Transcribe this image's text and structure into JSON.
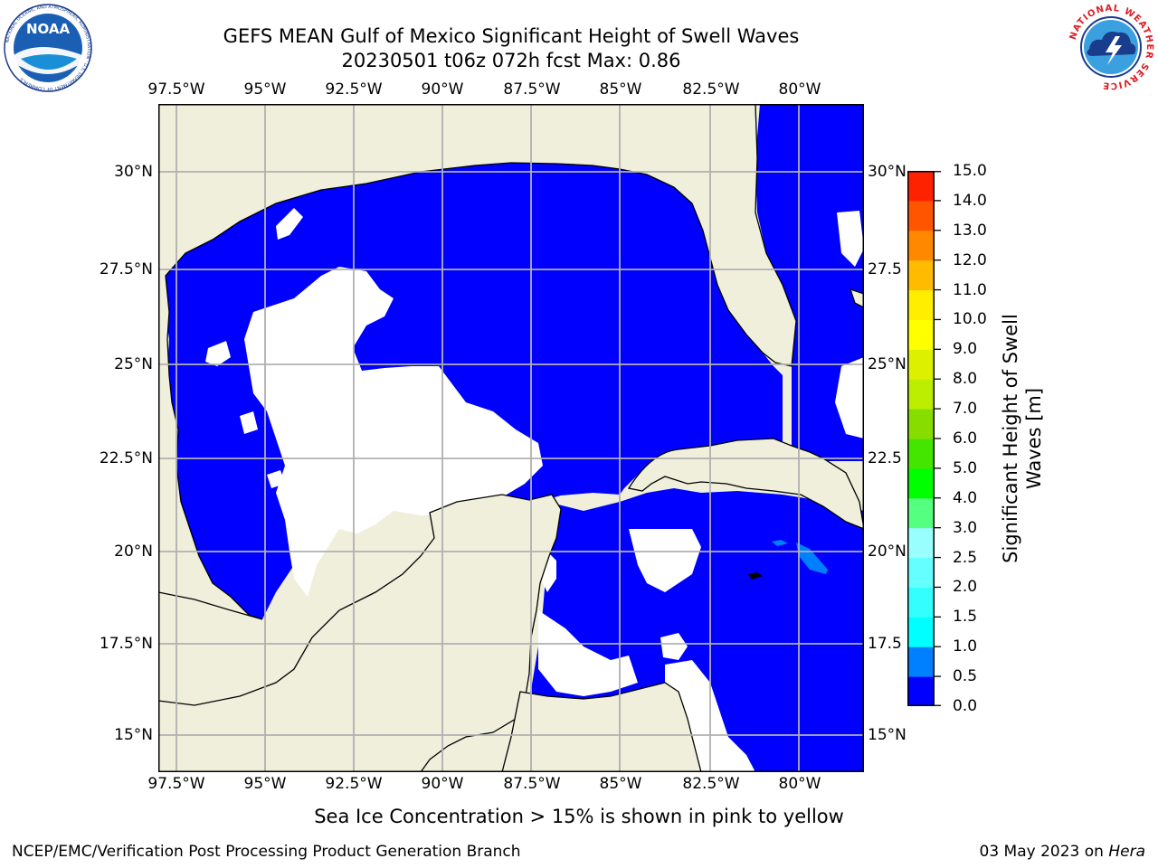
{
  "header": {
    "title": "GEFS MEAN Gulf of Mexico Significant Height of Swell Waves",
    "subtitle": "20230501 t06z 072h fcst   Max: 0.86"
  },
  "logos": {
    "left": "noaa-logo",
    "right": "national-weather-service-logo",
    "left_ring_text": "NATIONAL OCEANIC AND ATMOSPHERIC ADMINISTRATION · U.S. DEPARTMENT OF COMMERCE",
    "left_center_text": "NOAA",
    "right_ring_text": "NATIONAL WEATHER SERVICE"
  },
  "map": {
    "lon_labels": [
      "97.5°W",
      "95°W",
      "92.5°W",
      "90°W",
      "87.5°W",
      "85°W",
      "82.5°W",
      "80°W"
    ],
    "lat_labels_left": [
      "30°N",
      "27.5°N",
      "25°N",
      "22.5°N",
      "20°N",
      "17.5°N",
      "15°N"
    ],
    "lat_labels_right": [
      "30°N",
      "27.5",
      "25°N",
      "22.5",
      "20°N",
      "17.5",
      "15°N"
    ],
    "colors": {
      "land": "#efefdc",
      "no_data": "#ffffff",
      "level_0": "#0000ff",
      "level_0_5": "#0080ff",
      "gridline": "#b0b0b0"
    }
  },
  "colorbar": {
    "label": "Significant Height of Swell Waves [m]",
    "ticks": [
      "0.0",
      "0.5",
      "1.0",
      "1.5",
      "2.0",
      "2.5",
      "3.0",
      "4.0",
      "5.0",
      "6.0",
      "7.0",
      "8.0",
      "9.0",
      "10.0",
      "11.0",
      "12.0",
      "13.0",
      "14.0",
      "15.0"
    ],
    "colors": [
      "#0000ff",
      "#0080ff",
      "#00ffff",
      "#33ffff",
      "#66ffff",
      "#99ffff",
      "#55ff80",
      "#00ff00",
      "#44e600",
      "#88dd00",
      "#bbee00",
      "#ddf000",
      "#ffff00",
      "#ffee00",
      "#ffbb00",
      "#ff8800",
      "#ff5500",
      "#ff2200"
    ]
  },
  "notes": {
    "ice": "Sea Ice Concentration > 15% is shown in pink to yellow",
    "footer_left": "NCEP/EMC/Verification Post Processing Product Generation Branch",
    "footer_date": "03 May 2023 on ",
    "footer_machine": "Hera"
  }
}
